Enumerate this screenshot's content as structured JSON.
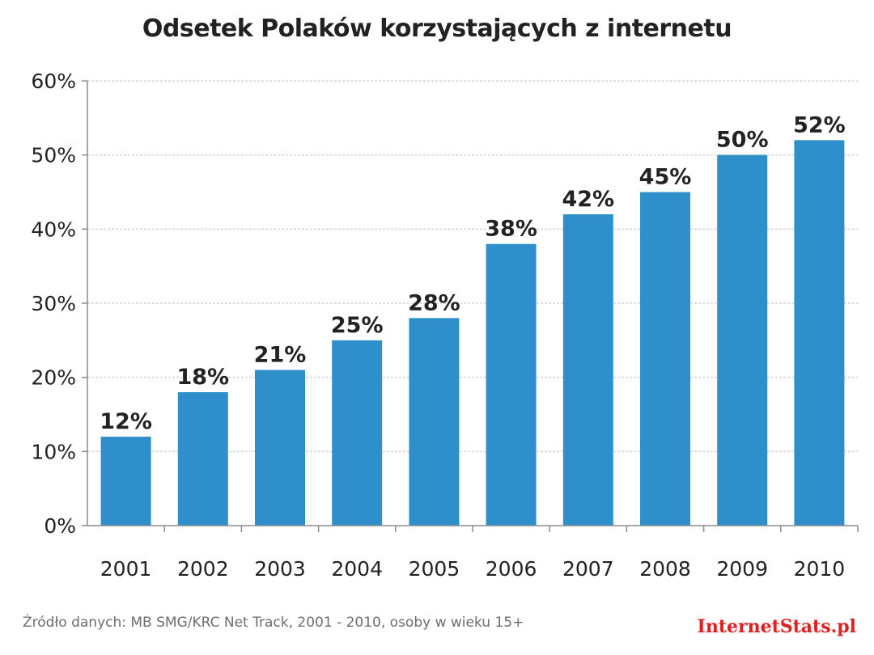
{
  "chart_data": {
    "type": "bar",
    "title": "Odsetek Polaków korzystających z internetu",
    "categories": [
      "2001",
      "2002",
      "2003",
      "2004",
      "2005",
      "2006",
      "2007",
      "2008",
      "2009",
      "2010"
    ],
    "values": [
      12,
      18,
      21,
      25,
      28,
      38,
      42,
      45,
      50,
      52
    ],
    "data_labels": [
      "12%",
      "18%",
      "21%",
      "25%",
      "28%",
      "38%",
      "42%",
      "45%",
      "50%",
      "52%"
    ],
    "y_ticks": [
      0,
      10,
      20,
      30,
      40,
      50,
      60
    ],
    "y_tick_labels": [
      "0%",
      "10%",
      "20%",
      "30%",
      "40%",
      "50%",
      "60%"
    ],
    "ylim": [
      0,
      60
    ],
    "xlabel": "",
    "ylabel": "",
    "grid": true,
    "legend": "none",
    "bar_color": "#2f8fca"
  },
  "footer": {
    "source": "Źródło danych: MB SMG/KRC Net Track, 2001 - 2010, osoby w wieku 15+",
    "brand": "InternetStats.pl",
    "brand_color": "#e02020"
  }
}
